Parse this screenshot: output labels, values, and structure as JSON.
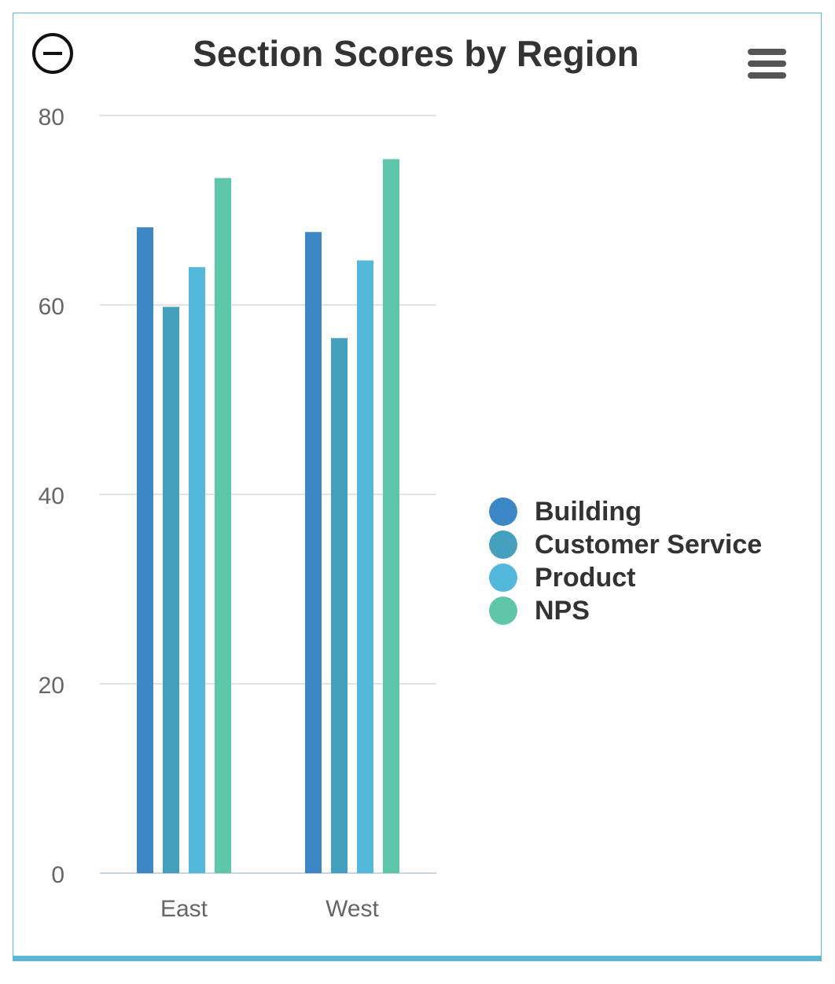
{
  "chart_data": {
    "type": "bar",
    "title": "Section Scores by Region",
    "categories": [
      "East",
      "West"
    ],
    "series": [
      {
        "name": "Building",
        "color": "#3d87c7",
        "values": [
          68.2,
          67.7
        ]
      },
      {
        "name": "Customer Service",
        "color": "#45a0bd",
        "values": [
          59.8,
          56.5
        ]
      },
      {
        "name": "Product",
        "color": "#54b8dc",
        "values": [
          64.0,
          64.7
        ]
      },
      {
        "name": "NPS",
        "color": "#5ec7aa",
        "values": [
          73.4,
          75.4
        ]
      }
    ],
    "ylim": [
      0,
      80
    ],
    "yticks": [
      0,
      20,
      40,
      60,
      80
    ],
    "grid": true,
    "legend": "right"
  }
}
